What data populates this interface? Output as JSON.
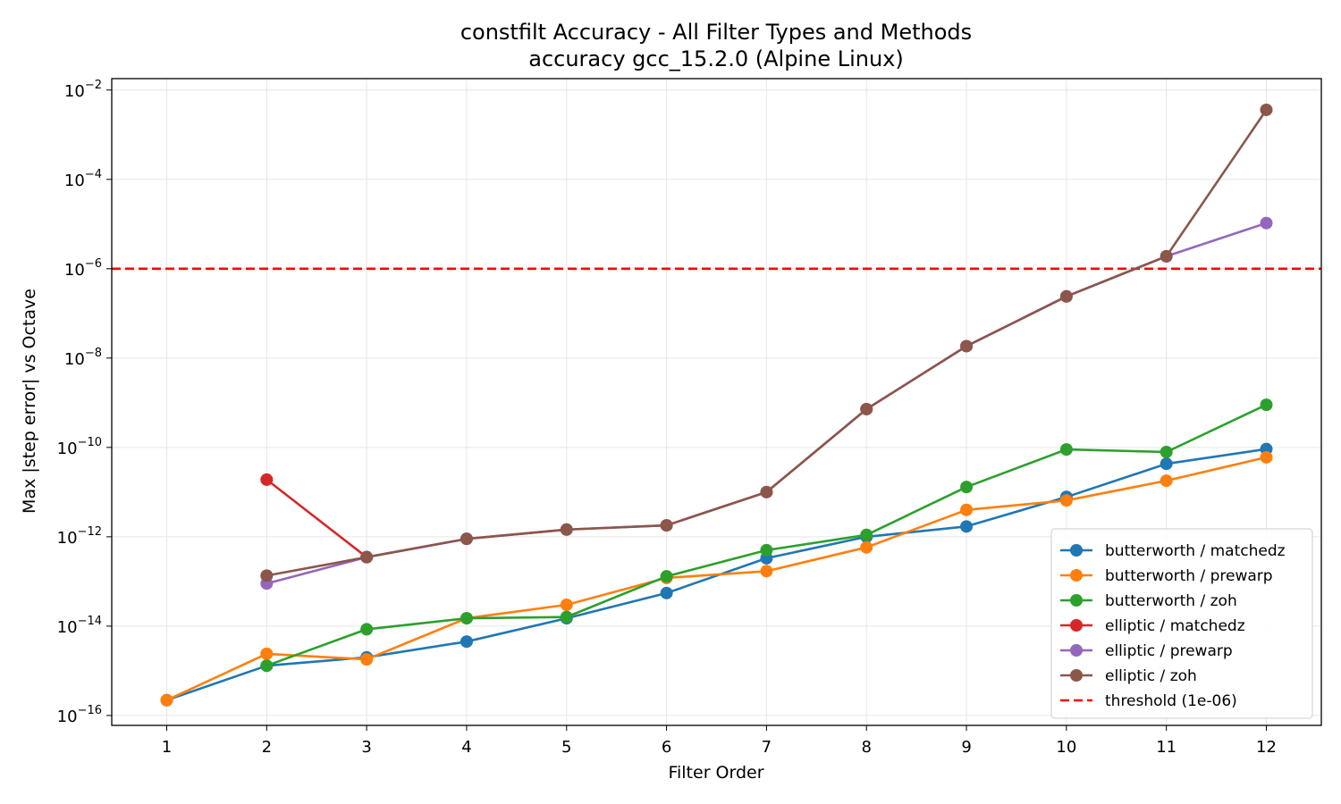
{
  "chart_data": {
    "type": "line",
    "title": "constfilt Accuracy - All Filter Types and Methods",
    "subtitle": "accuracy gcc_15.2.0 (Alpine Linux)",
    "xlabel": "Filter Order",
    "ylabel": "Max |step error| vs Octave",
    "yscale": "log",
    "xlim": [
      0.45,
      12.55
    ],
    "ylim": [
      6e-17,
      0.018
    ],
    "x_ticks": [
      1,
      2,
      3,
      4,
      5,
      6,
      7,
      8,
      9,
      10,
      11,
      12
    ],
    "y_ticks": [
      {
        "value": 1e-16,
        "base": "10",
        "exp": "−16"
      },
      {
        "value": 1e-14,
        "base": "10",
        "exp": "−14"
      },
      {
        "value": 1e-12,
        "base": "10",
        "exp": "−12"
      },
      {
        "value": 1e-10,
        "base": "10",
        "exp": "−10"
      },
      {
        "value": 1e-08,
        "base": "10",
        "exp": "−8"
      },
      {
        "value": 1e-06,
        "base": "10",
        "exp": "−6"
      },
      {
        "value": 0.0001,
        "base": "10",
        "exp": "−4"
      },
      {
        "value": 0.01,
        "base": "10",
        "exp": "−2"
      }
    ],
    "grid": true,
    "legend_position": "lower-right",
    "series": [
      {
        "name": "butterworth / matchedz",
        "color": "#1f77b4",
        "x": [
          1,
          2,
          3,
          4,
          5,
          6,
          7,
          8,
          9,
          10,
          11,
          12
        ],
        "values": [
          2.2e-16,
          1.3e-15,
          2e-15,
          4.5e-15,
          1.5e-14,
          5.5e-14,
          3.3e-13,
          1e-12,
          1.7e-12,
          7.8e-12,
          4.3e-11,
          9.2e-11
        ]
      },
      {
        "name": "butterworth / prewarp",
        "color": "#ff7f0e",
        "x": [
          1,
          2,
          3,
          4,
          5,
          6,
          7,
          8,
          9,
          10,
          11,
          12
        ],
        "values": [
          2.2e-16,
          2.4e-15,
          1.8e-15,
          1.5e-14,
          3e-14,
          1.2e-13,
          1.7e-13,
          5.8e-13,
          4e-12,
          6.5e-12,
          1.8e-11,
          6e-11
        ]
      },
      {
        "name": "butterworth / zoh",
        "color": "#2ca02c",
        "x": [
          2,
          3,
          4,
          5,
          6,
          7,
          8,
          9,
          10,
          11,
          12
        ],
        "values": [
          1.3e-15,
          8.5e-15,
          1.5e-14,
          1.6e-14,
          1.3e-13,
          5e-13,
          1.1e-12,
          1.3e-11,
          9e-11,
          7.9e-11,
          9e-10
        ]
      },
      {
        "name": "elliptic / matchedz",
        "color": "#d62728",
        "x": [
          2,
          3
        ],
        "values": [
          1.9e-11,
          3.5e-13
        ]
      },
      {
        "name": "elliptic / prewarp",
        "color": "#9467bd",
        "x": [
          2,
          3,
          4,
          5,
          6,
          7,
          8,
          9,
          10,
          11,
          12
        ],
        "values": [
          9e-14,
          3.5e-13,
          9e-13,
          1.45e-12,
          1.8e-12,
          1e-11,
          7.2e-10,
          1.85e-08,
          2.4e-07,
          1.9e-06,
          1.05e-05
        ]
      },
      {
        "name": "elliptic / zoh",
        "color": "#8c564b",
        "x": [
          2,
          3,
          4,
          5,
          6,
          7,
          8,
          9,
          10,
          11,
          12
        ],
        "values": [
          1.35e-13,
          3.5e-13,
          9e-13,
          1.45e-12,
          1.8e-12,
          1e-11,
          7.2e-10,
          1.85e-08,
          2.4e-07,
          1.9e-06,
          0.0036
        ]
      }
    ],
    "threshold": {
      "label": "threshold (1e-06)",
      "value": 1e-06,
      "color": "#ff0000"
    }
  }
}
